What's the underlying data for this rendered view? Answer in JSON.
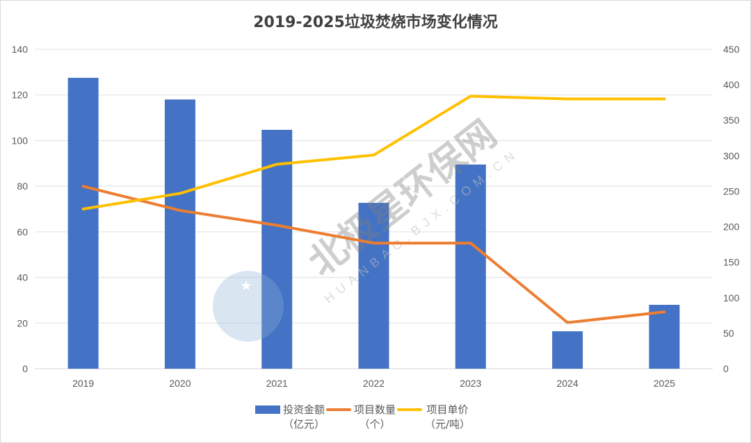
{
  "chart_data": {
    "type": "bar",
    "title": "2019-2025垃圾焚烧市场变化情况",
    "categories": [
      "2019",
      "2020",
      "2021",
      "2022",
      "2023",
      "2024",
      "2025"
    ],
    "series": [
      {
        "name": "投资金额（亿元）",
        "type": "bar",
        "axis": "left",
        "color": "#4472C4",
        "values": [
          127.5,
          118,
          104.7,
          72.7,
          89.5,
          16.4,
          28
        ]
      },
      {
        "name": "项目数量（个）",
        "type": "line",
        "axis": "right",
        "color": "#ED7D31",
        "values": [
          257,
          223,
          202,
          177,
          177,
          65,
          80
        ]
      },
      {
        "name": "项目单价（元/吨）",
        "type": "line",
        "axis": "right",
        "color": "#FFC000",
        "values": [
          225,
          247,
          288,
          301,
          384,
          380,
          380
        ]
      }
    ],
    "left_axis": {
      "ylim": [
        0,
        140
      ],
      "ticks": [
        0,
        20,
        40,
        60,
        80,
        100,
        120,
        140
      ]
    },
    "right_axis": {
      "ylim": [
        0,
        450
      ],
      "ticks": [
        0,
        50,
        100,
        150,
        200,
        250,
        300,
        350,
        400,
        450
      ]
    },
    "xlabel": "",
    "ylabel": "",
    "grid": true,
    "legend_position": "bottom"
  },
  "legend": [
    {
      "line1": "投资金额",
      "line2": "（亿元）"
    },
    {
      "line1": "项目数量",
      "line2": "（个）"
    },
    {
      "line1": "项目单价",
      "line2": "（元/吨）"
    }
  ],
  "watermark": {
    "cn": "北极星环保网",
    "en": "HUANBAO.BJX.COM.CN"
  }
}
